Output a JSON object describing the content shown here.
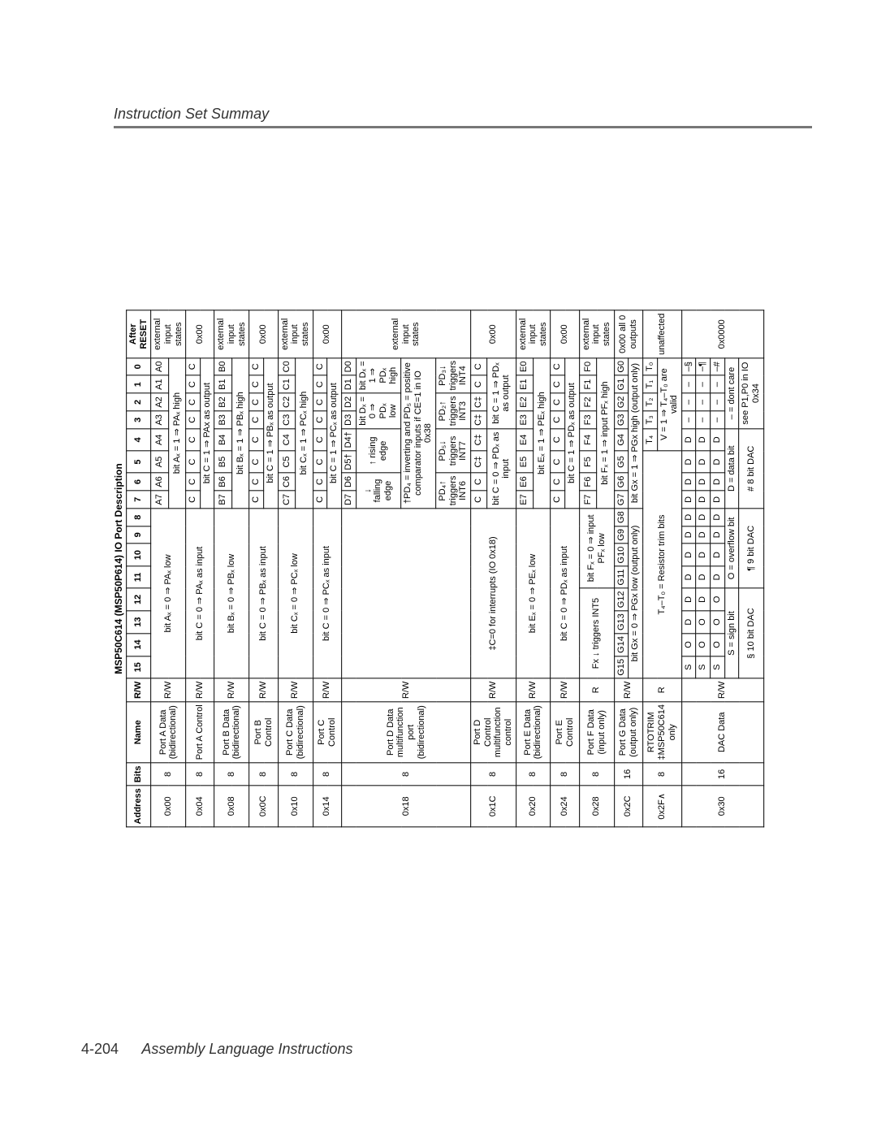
{
  "doc": {
    "header_title": "Instruction Set Summay",
    "page_number": "4-204",
    "footer_text": "Assembly Language Instructions",
    "table_caption": "MSP50C614 (MSP50P614) IO Port Description"
  },
  "head": {
    "addr": "Address",
    "bits": "Bits",
    "name": "Name",
    "rw": "R/W",
    "b15": "15",
    "b14": "14",
    "b13": "13",
    "b12": "12",
    "b11": "11",
    "b10": "10",
    "b9": "9",
    "b8": "8",
    "b7": "7",
    "b6": "6",
    "b5": "5",
    "b4": "4",
    "b3": "3",
    "b2": "2",
    "b1": "1",
    "b0": "0",
    "reset": "After RESET"
  },
  "r00": {
    "addr": "0x00",
    "bits": "8",
    "name": "Port A Data (bidirectional)",
    "rw": "R/W",
    "note": "bit Aₓ  = 0 ⇒ PAₓ low",
    "reset": "external input states",
    "b7": "A7",
    "b6": "A6",
    "b5": "A5",
    "b4": "A4",
    "b3": "A3",
    "b2": "A2",
    "b1": "A1",
    "b0": "A0"
  },
  "r00b": {
    "note": "bit Aₓ  = 1 ⇒ PAₓ high"
  },
  "r04": {
    "addr": "0x04",
    "bits": "8",
    "name": "Port A Control",
    "rw": "R/W",
    "note": "bit C  = 0 ⇒ PAₓ as input",
    "reset": "0x00",
    "b7": "C",
    "b6": "C",
    "b5": "C",
    "b4": "C",
    "b3": "C",
    "b2": "C",
    "b1": "C",
    "b0": "C"
  },
  "r04b": {
    "note": "bit C  = 1 ⇒ PAx as output"
  },
  "r08": {
    "addr": "0x08",
    "bits": "8",
    "name": "Port B Data (bidirectional)",
    "rw": "R/W",
    "note": "bit Bₓ  = 0 ⇒ PBₓ low",
    "reset": "external input states",
    "b7": "B7",
    "b6": "B6",
    "b5": "B5",
    "b4": "B4",
    "b3": "B3",
    "b2": "B2",
    "b1": "B1",
    "b0": "B0"
  },
  "r08b": {
    "note": "bit Bₓ  = 1 ⇒ PBₓ high"
  },
  "r0C": {
    "addr": "0x0C",
    "bits": "8",
    "name": "Port B Control",
    "rw": "R/W",
    "note": "bit C = 0 ⇒ PBₓ as input",
    "reset": "0x00",
    "b7": "C",
    "b6": "C",
    "b5": "C",
    "b4": "C",
    "b3": "C",
    "b2": "C",
    "b1": "C",
    "b0": "C"
  },
  "r0Cb": {
    "note": "bit C = 1 ⇒ PBₓ as output"
  },
  "r10": {
    "addr": "0x10",
    "bits": "8",
    "name": "Port C Data (bidirectional)",
    "rw": "R/W",
    "note": "bit Cₓ  = 0 ⇒ PCₓ low",
    "reset": "external input states",
    "b7": "C7",
    "b6": "C6",
    "b5": "C5",
    "b4": "C4",
    "b3": "C3",
    "b2": "C2",
    "b1": "C1",
    "b0": "C0"
  },
  "r10b": {
    "note": "bit Cₓ  = 1 ⇒ PCₓ high"
  },
  "r14": {
    "addr": "0x14",
    "bits": "8",
    "name": "Port C Control",
    "rw": "R/W",
    "note": "bit C  = 0 ⇒ PCₓ as input",
    "reset": "0x00",
    "b7": "C",
    "b6": "C",
    "b5": "C",
    "b4": "C",
    "b3": "C",
    "b2": "C",
    "b1": "C",
    "b0": "C"
  },
  "r14b": {
    "note": "bit C  = 1 ⇒ PCₓ as output"
  },
  "r18": {
    "addr": "0x18",
    "bits": "8",
    "name": "Port D Data multifunction port (bidirectional)",
    "rw": "R/W",
    "reset": "external input states",
    "b7": "D7",
    "b6": "D6",
    "b5": "D5†",
    "b4": "D4†",
    "b3": "D3",
    "b2": "D2",
    "b1": "D1",
    "b0": "D0"
  },
  "r18a": {
    "fall": "↓ falling edge",
    "rise": "↑ rising edge",
    "l0": "bit Dₓ  = 0 ⇒ PDₓ low",
    "l1": "bit Dₓ  = 1 ⇒ PDₓ high"
  },
  "r18b": {
    "note": "†PD₄ = inverting and PD₅ = positive comparator inputs if CE=1 in IO 0x38"
  },
  "r18c": {
    "i6": "PD₄↑ triggers INT6",
    "i7": "PD₅↓ triggers INT7",
    "i3": "PD₂↑ triggers INT3",
    "i4": "PD₃↓ triggers INT4"
  },
  "r1C": {
    "addr": "0x1C",
    "bits": "8",
    "name": "Port D Control multifunction control",
    "rw": "R/W",
    "note": "‡C=0 for interrupts (IO 0x18)",
    "reset": "0x00",
    "b7": "C",
    "b6": "C",
    "b5": "C‡",
    "b4": "C‡",
    "b3": "C‡",
    "b2": "C‡",
    "b1": "C",
    "b0": "C"
  },
  "r1Cb": {
    "l": "bit C = 0 ⇒ PDₓ as input",
    "r": "bit C = 1 ⇒ PDₓ as output"
  },
  "r20": {
    "addr": "0x20",
    "bits": "8",
    "name": "Port E Data (bidirectional)",
    "rw": "R/W",
    "note": "bit Eₓ  = 0 ⇒ PEₓ low",
    "reset": "external input states",
    "b7": "E7",
    "b6": "E6",
    "b5": "E5",
    "b4": "E4",
    "b3": "E3",
    "b2": "E2",
    "b1": "E1",
    "b0": "E0"
  },
  "r20b": {
    "note": "bit Eₓ  = 1 ⇒ PEₓ high"
  },
  "r24": {
    "addr": "0x24",
    "bits": "8",
    "name": "Port E Control",
    "rw": "R/W",
    "note": "bit C = 0 ⇒ PDₓ as input",
    "reset": "0x00",
    "b7": "C",
    "b6": "C",
    "b5": "C",
    "b4": "C",
    "b3": "C",
    "b2": "C",
    "b1": "C",
    "b0": "C"
  },
  "r24b": {
    "note": "bit C = 1 ⇒ PDₓ as output"
  },
  "r28": {
    "addr": "0x28",
    "bits": "8",
    "name": "Port F Data (input only)",
    "rw": "R",
    "int5": "Fx ↓ triggers INT5",
    "l0": "bit Fₓ = 0 ⇒ input PFₓ low",
    "reset": "external input states",
    "b7": "F7",
    "b6": "F6",
    "b5": "F5",
    "b4": "F4",
    "b3": "F3",
    "b2": "F2",
    "b1": "F1",
    "b0": "F0"
  },
  "r28b": {
    "note": "bit Fₓ = 1 ⇒ input PFₓ high"
  },
  "r2C": {
    "addr": "0x2C",
    "bits": "16",
    "name": "Port G Data (output only)",
    "rw": "R/W",
    "note": "bit Gx  = 0 ⇒ PGx low (output only)",
    "reset": "0x00 all 0 outputs",
    "b15": "G15",
    "b14": "G14",
    "b13": "G13",
    "b12": "G12",
    "b11": "G11",
    "b10": "G10",
    "b9": "G9",
    "b8": "G8",
    "b7": "G7",
    "b6": "G6",
    "b5": "G5",
    "b4": "G4",
    "b3": "G3",
    "b2": "G2",
    "b1": "G1",
    "b0": "G0"
  },
  "r2Cb": {
    "note": "bit Gx  = 1 ⇒ PGx high (output only)"
  },
  "r2F": {
    "addr": "0x2F∧",
    "bits": "8",
    "name": "RTOTRIM ‡MSP50C614 only",
    "rw": "R",
    "note": "T₄–T₀ = Resistor trim bits",
    "reset": "unaffected",
    "b4": "T₄",
    "b3": "T₃",
    "b2": "T₂",
    "b1": "T₁",
    "b0": "T₀"
  },
  "r2Fb": {
    "note": "V = 1 ⇒ T₄–T₀ are valid"
  },
  "r30": {
    "addr": "0x30",
    "bits": "16",
    "name": "DAC Data",
    "rw": "R/W",
    "reset": "0x0000",
    "s15": "S",
    "o14": "O",
    "d": "D",
    "dash": "–",
    "ns": "–§",
    "nq": "–¶",
    "nh": "–#"
  },
  "r30b": {
    "sign": "S = sign bit",
    "ovf": "O = overflow bit",
    "data": "D = data bit",
    "dc": "– = dont care"
  },
  "r30c": {
    "d10": "§ 10 bit  DAC",
    "d9": "¶ 9 bit DAC",
    "d8": "# 8 bit DAC",
    "note": "see P1,P0 in IO 0x34"
  }
}
